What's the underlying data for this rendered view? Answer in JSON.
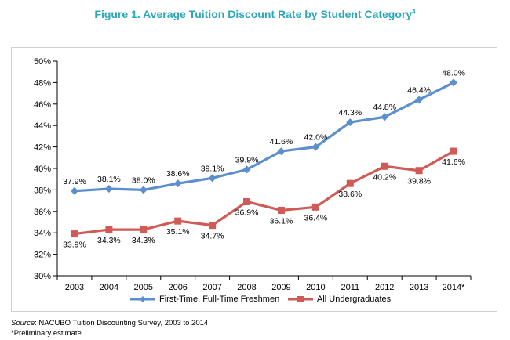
{
  "figure": {
    "title_main": "Figure 1. Average Tuition Discount Rate by Student Category",
    "title_sup": "4"
  },
  "footer": {
    "source_label": "Source",
    "source_text": ": NACUBO Tuition Discounting Survey, 2003 to 2014.",
    "note": "*Preliminary estimate."
  },
  "colors": {
    "title": "#2aa7b8",
    "series_blue": "#5b8fd0",
    "series_red": "#d05a55"
  },
  "chart_data": {
    "type": "line",
    "title": "Figure 1. Average Tuition Discount Rate by Student Category",
    "xlabel": "",
    "ylabel": "",
    "ylim": [
      30,
      50
    ],
    "yticks": [
      "30%",
      "32%",
      "34%",
      "36%",
      "38%",
      "40%",
      "42%",
      "44%",
      "46%",
      "48%",
      "50%"
    ],
    "categories": [
      "2003",
      "2004",
      "2005",
      "2006",
      "2007",
      "2008",
      "2009",
      "2010",
      "2011",
      "2012",
      "2013",
      "2014*"
    ],
    "series": [
      {
        "name": "First-Time, Full-Time Freshmen",
        "color": "#5b8fd0",
        "marker": "diamond",
        "values": [
          37.9,
          38.1,
          38.0,
          38.6,
          39.1,
          39.9,
          41.6,
          42.0,
          44.3,
          44.8,
          46.4,
          48.0
        ],
        "labels": [
          "37.9%",
          "38.1%",
          "38.0%",
          "38.6%",
          "39.1%",
          "39.9%",
          "41.6%",
          "42.0%",
          "44.3%",
          "44.8%",
          "46.4%",
          "48.0%"
        ]
      },
      {
        "name": "All Undergraduates",
        "color": "#d05a55",
        "marker": "square",
        "values": [
          33.9,
          34.3,
          34.3,
          35.1,
          34.7,
          36.9,
          36.1,
          36.4,
          38.6,
          40.2,
          39.8,
          41.6
        ],
        "labels": [
          "33.9%",
          "34.3%",
          "34.3%",
          "35.1%",
          "34.7%",
          "36.9%",
          "36.1%",
          "36.4%",
          "38.6%",
          "40.2%",
          "39.8%",
          "41.6%"
        ]
      }
    ],
    "grid": false,
    "legend_position": "bottom"
  }
}
